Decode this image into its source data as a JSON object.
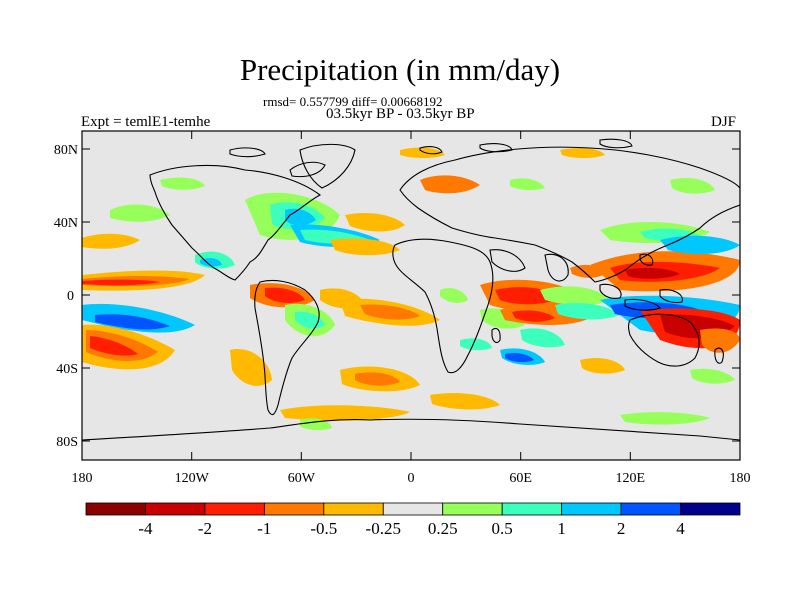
{
  "plot": {
    "title": "Precipitation (in mm/day)",
    "stats": "rmsd= 0.557799 diff= 0.00668192",
    "period": "03.5kyr BP - 03.5kyr BP",
    "experiment": "Expt = temlE1-temhe",
    "season": "DJF"
  },
  "axes": {
    "y_ticks": [
      "80N",
      "40N",
      "0",
      "40S",
      "80S"
    ],
    "x_ticks": [
      "180",
      "120W",
      "60W",
      "0",
      "60E",
      "120E",
      "180"
    ]
  },
  "colorbar": {
    "colors": [
      "#8c0000",
      "#c80000",
      "#ff1e00",
      "#ff7800",
      "#ffba00",
      "#e6e6e6",
      "#96ff5a",
      "#3cffbe",
      "#00c8ff",
      "#0055ff",
      "#00008c"
    ],
    "labels": [
      "-4",
      "-2",
      "-1",
      "-0.5",
      "-0.25",
      "0.25",
      "0.5",
      "1",
      "2",
      "4"
    ]
  },
  "colors": {
    "background": "#e6e6e6",
    "coast": "#000000"
  }
}
